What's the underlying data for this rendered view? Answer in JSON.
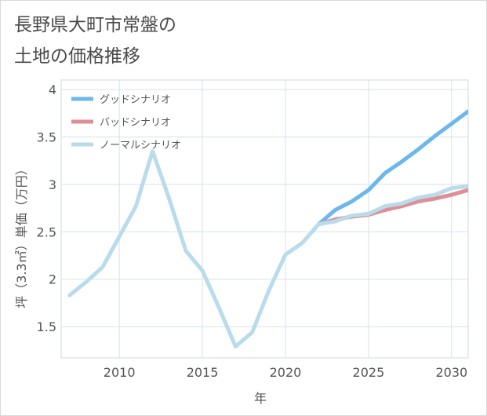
{
  "chart_data": {
    "type": "line",
    "title_lines": [
      "長野県大町市常盤の",
      "土地の価格推移"
    ],
    "xlabel": "年",
    "ylabel": "坪（3.3㎡）単価（万円）",
    "xlim": [
      2006.5,
      2031
    ],
    "ylim": [
      1.17,
      4.1
    ],
    "x_ticks": [
      2010,
      2015,
      2020,
      2025,
      2030
    ],
    "y_ticks": [
      1.5,
      2,
      2.5,
      3,
      3.5,
      4
    ],
    "legend_position": "top-left",
    "series": [
      {
        "name": "グッドシナリオ",
        "color": "#6cb8ec",
        "x": [
          2022,
          2023,
          2024,
          2025,
          2026,
          2027,
          2028,
          2029,
          2030,
          2031
        ],
        "y": [
          2.58,
          2.73,
          2.82,
          2.94,
          3.12,
          3.24,
          3.37,
          3.51,
          3.64,
          3.77
        ]
      },
      {
        "name": "バッドシナリオ",
        "color": "#e08e95",
        "x": [
          2022,
          2023,
          2024,
          2025,
          2026,
          2027,
          2028,
          2029,
          2030,
          2031
        ],
        "y": [
          2.58,
          2.63,
          2.66,
          2.68,
          2.73,
          2.77,
          2.82,
          2.85,
          2.89,
          2.94
        ]
      },
      {
        "name": "ノーマルシナリオ",
        "color": "#b8dceb",
        "x": [
          2007,
          2008,
          2009,
          2010,
          2011,
          2012,
          2013,
          2014,
          2015,
          2016,
          2017,
          2018,
          2019,
          2020,
          2021,
          2022,
          2023,
          2024,
          2025,
          2026,
          2027,
          2028,
          2029,
          2030,
          2031
        ],
        "y": [
          1.83,
          1.97,
          2.13,
          2.45,
          2.77,
          3.35,
          2.85,
          2.3,
          2.09,
          1.7,
          1.29,
          1.44,
          1.88,
          2.26,
          2.38,
          2.58,
          2.61,
          2.67,
          2.69,
          2.77,
          2.8,
          2.86,
          2.89,
          2.96,
          2.98
        ]
      }
    ]
  }
}
